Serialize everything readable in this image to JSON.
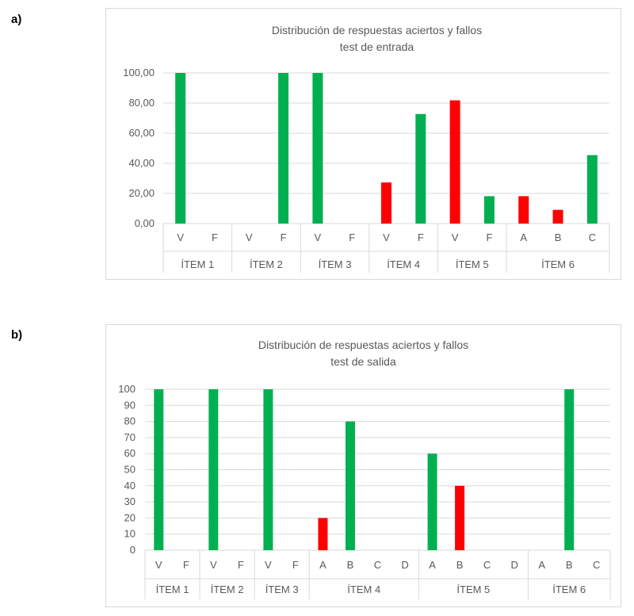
{
  "panels": {
    "a_label": "a)",
    "b_label": "b)"
  },
  "colors": {
    "correct": "#00b050",
    "wrong": "#ff0000",
    "grid": "#d9d9d9",
    "text": "#595959"
  },
  "chart_data": [
    {
      "type": "bar",
      "title": "Distribución de respuestas aciertos y fallos",
      "subtitle": "test de entrada",
      "ylim": [
        0,
        100
      ],
      "yticks": [
        "0,00",
        "20,00",
        "40,00",
        "60,00",
        "80,00",
        "100,00"
      ],
      "ytick_values": [
        0,
        20,
        40,
        60,
        80,
        100
      ],
      "groups": [
        {
          "name": "ÍTEM 1",
          "categories": [
            "V",
            "F"
          ],
          "values": [
            100,
            0
          ],
          "status": [
            "correct",
            "correct"
          ]
        },
        {
          "name": "ÍTEM 2",
          "categories": [
            "V",
            "F"
          ],
          "values": [
            0,
            100
          ],
          "status": [
            "correct",
            "correct"
          ]
        },
        {
          "name": "ÍTEM 3",
          "categories": [
            "V",
            "F"
          ],
          "values": [
            100,
            0
          ],
          "status": [
            "correct",
            "correct"
          ]
        },
        {
          "name": "ÍTEM 4",
          "categories": [
            "V",
            "F"
          ],
          "values": [
            27.27,
            72.73
          ],
          "status": [
            "wrong",
            "correct"
          ]
        },
        {
          "name": "ÍTEM 5",
          "categories": [
            "V",
            "F"
          ],
          "values": [
            81.82,
            18.18
          ],
          "status": [
            "wrong",
            "correct"
          ]
        },
        {
          "name": "ÍTEM 6",
          "categories": [
            "A",
            "B",
            "C"
          ],
          "values": [
            18.18,
            9.09,
            45.45
          ],
          "status": [
            "wrong",
            "wrong",
            "correct"
          ]
        }
      ]
    },
    {
      "type": "bar",
      "title": "Distribución de respuestas aciertos y fallos",
      "subtitle": "test de salida",
      "ylim": [
        0,
        100
      ],
      "yticks": [
        "0",
        "10",
        "20",
        "30",
        "40",
        "50",
        "60",
        "70",
        "80",
        "90",
        "100"
      ],
      "ytick_values": [
        0,
        10,
        20,
        30,
        40,
        50,
        60,
        70,
        80,
        90,
        100
      ],
      "groups": [
        {
          "name": "ÍTEM 1",
          "categories": [
            "V",
            "F"
          ],
          "values": [
            100,
            0
          ],
          "status": [
            "correct",
            "correct"
          ]
        },
        {
          "name": "ÍTEM 2",
          "categories": [
            "V",
            "F"
          ],
          "values": [
            100,
            0
          ],
          "status": [
            "correct",
            "correct"
          ]
        },
        {
          "name": "ÍTEM 3",
          "categories": [
            "V",
            "F"
          ],
          "values": [
            100,
            0
          ],
          "status": [
            "correct",
            "correct"
          ]
        },
        {
          "name": "ÍTEM 4",
          "categories": [
            "A",
            "B",
            "C",
            "D"
          ],
          "values": [
            20,
            80,
            0,
            0
          ],
          "status": [
            "wrong",
            "correct",
            "correct",
            "correct"
          ]
        },
        {
          "name": "ÍTEM 5",
          "categories": [
            "A",
            "B",
            "C",
            "D"
          ],
          "values": [
            60,
            40,
            0,
            0
          ],
          "status": [
            "correct",
            "wrong",
            "correct",
            "correct"
          ]
        },
        {
          "name": "ÍTEM 6",
          "categories": [
            "A",
            "B",
            "C"
          ],
          "values": [
            0,
            100,
            0
          ],
          "status": [
            "correct",
            "correct",
            "correct"
          ]
        }
      ]
    }
  ]
}
